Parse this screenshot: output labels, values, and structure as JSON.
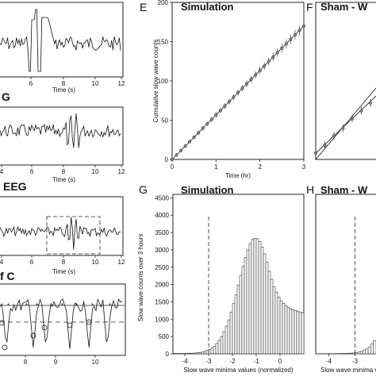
{
  "left_panels": [
    {
      "label": "",
      "xlabel": "Time (s)",
      "ticks": [
        "6",
        "8",
        "10",
        "12"
      ]
    },
    {
      "label": "G",
      "xlabel": "Time (s)",
      "ticks": [
        "4",
        "6",
        "8",
        "10",
        "12"
      ]
    },
    {
      "label": "EEG",
      "xlabel": "Time (s)",
      "ticks": [
        "4",
        "6",
        "8",
        "10",
        "12"
      ]
    },
    {
      "label": "f C",
      "xlabel": "",
      "ticks": [
        "8",
        "9",
        "10"
      ]
    }
  ],
  "chart_data": [
    {
      "panel": "E",
      "title": "Simulation",
      "type": "line",
      "xlabel": "Time (hr)",
      "ylabel": "Cumulative slow wave counts",
      "xlim": [
        0,
        3
      ],
      "ylim": [
        0,
        200
      ],
      "xticks": [
        "0",
        "1",
        "2",
        "3"
      ],
      "yticks": [
        "0",
        "50",
        "100",
        "150",
        "200"
      ],
      "series": [
        {
          "x": [
            0,
            0.1,
            0.2,
            0.3,
            0.4,
            0.5,
            0.6,
            0.7,
            0.8,
            0.9,
            1.0,
            1.1,
            1.2,
            1.3,
            1.4,
            1.5,
            1.6,
            1.7,
            1.8,
            1.9,
            2.0,
            2.1,
            2.2,
            2.3,
            2.4,
            2.5,
            2.6,
            2.7,
            2.8,
            2.9,
            3.0
          ],
          "y": [
            0,
            5.7,
            11.3,
            17,
            22.7,
            28.3,
            34,
            39.7,
            45.3,
            51,
            56.7,
            62.3,
            68,
            73.7,
            79.3,
            85,
            90.7,
            96.3,
            102,
            107.7,
            113.3,
            119,
            124.7,
            130.3,
            136,
            141.7,
            147.3,
            153,
            158.7,
            164.3,
            170
          ]
        }
      ]
    },
    {
      "panel": "F",
      "title": "Sham - W",
      "type": "line",
      "xlim": [
        0,
        0.4
      ],
      "ylim": [
        0,
        200
      ],
      "series": [
        {
          "x": [
            0,
            0.05,
            0.1,
            0.15,
            0.2,
            0.25,
            0.3,
            0.35,
            0.4
          ],
          "y": [
            8,
            18,
            30,
            40,
            52,
            62,
            72,
            84,
            96
          ]
        }
      ]
    },
    {
      "panel": "G",
      "title": "Simulation",
      "type": "bar",
      "xlabel": "Slow wave minima values (normalized)",
      "ylabel": "Slow wave counts over 3 hours",
      "xlim": [
        -4.5,
        1.0
      ],
      "ylim": [
        0,
        4600
      ],
      "xticks": [
        "-4",
        "-3",
        "-2",
        "-1",
        "0"
      ],
      "yticks": [
        "0",
        "500",
        "1000",
        "1500",
        "2000",
        "2500",
        "3000",
        "3500",
        "4000",
        "4500"
      ],
      "threshold": -3,
      "bin_width": 0.1,
      "bin_centers": [
        -4.45,
        -4.35,
        -4.25,
        -4.15,
        -4.05,
        -3.95,
        -3.85,
        -3.75,
        -3.65,
        -3.55,
        -3.45,
        -3.35,
        -3.25,
        -3.15,
        -3.05,
        -2.95,
        -2.85,
        -2.75,
        -2.65,
        -2.55,
        -2.45,
        -2.35,
        -2.25,
        -2.15,
        -2.05,
        -1.95,
        -1.85,
        -1.75,
        -1.65,
        -1.55,
        -1.45,
        -1.35,
        -1.25,
        -1.15,
        -1.05,
        -0.95,
        -0.85,
        -0.75,
        -0.65,
        -0.55,
        -0.45,
        -0.35,
        -0.25,
        -0.15,
        -0.05,
        0.05,
        0.15,
        0.25,
        0.35,
        0.45,
        0.55,
        0.65,
        0.75,
        0.85,
        0.95
      ],
      "values": [
        10,
        10,
        10,
        10,
        10,
        10,
        15,
        15,
        20,
        25,
        30,
        40,
        50,
        70,
        100,
        130,
        170,
        220,
        300,
        390,
        500,
        640,
        800,
        980,
        1200,
        1450,
        1700,
        1980,
        2250,
        2520,
        2780,
        3000,
        3180,
        3300,
        3330,
        3320,
        3240,
        3080,
        2880,
        2640,
        2380,
        2150,
        1940,
        1780,
        1640,
        1530,
        1450,
        1390,
        1340,
        1300,
        1270,
        1250,
        1220,
        1200,
        1180
      ]
    },
    {
      "panel": "H",
      "title": "Sham - W",
      "type": "bar",
      "xlabel": "Slow wave minima values (normalized)",
      "xlim": [
        -4.5,
        -2.2
      ],
      "ylim": [
        0,
        4600
      ],
      "xticks": [
        "-4",
        "-3"
      ],
      "threshold": -3,
      "bin_centers": [
        -4.45,
        -4.35,
        -4.25,
        -4.15,
        -4.05,
        -3.95,
        -3.85,
        -3.75,
        -3.65,
        -3.55,
        -3.45,
        -3.35,
        -3.25,
        -3.15,
        -3.05,
        -2.95,
        -2.85,
        -2.75,
        -2.65,
        -2.55,
        -2.45,
        -2.35,
        -2.25
      ],
      "values": [
        5,
        5,
        5,
        5,
        5,
        5,
        5,
        8,
        8,
        10,
        10,
        12,
        15,
        20,
        25,
        35,
        50,
        70,
        100,
        140,
        200,
        280,
        380
      ]
    }
  ]
}
